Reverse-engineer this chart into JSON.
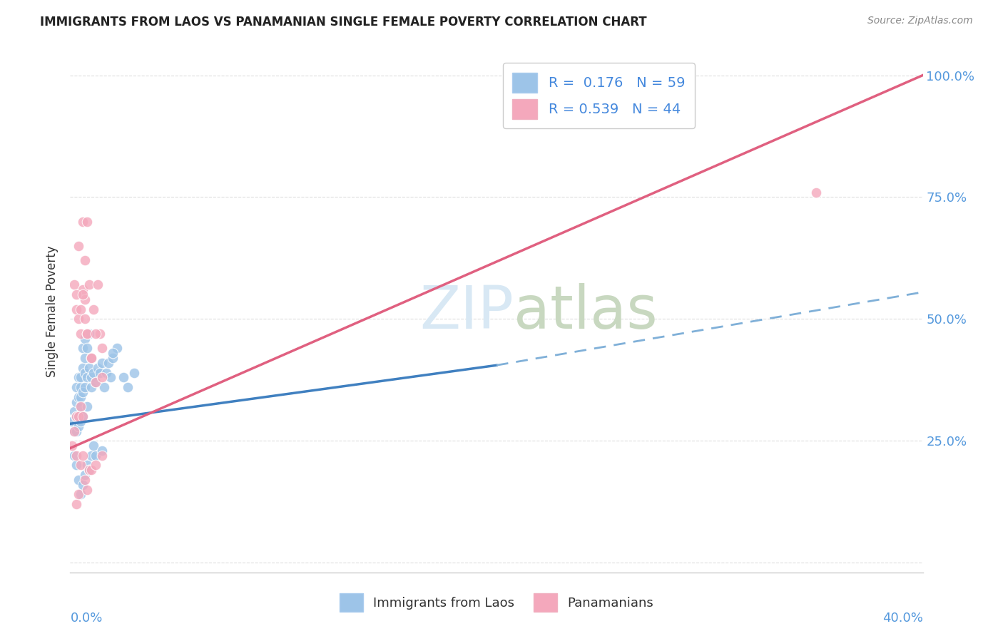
{
  "title": "IMMIGRANTS FROM LAOS VS PANAMANIAN SINGLE FEMALE POVERTY CORRELATION CHART",
  "source": "Source: ZipAtlas.com",
  "ylabel": "Single Female Poverty",
  "legend_laos_R": "0.176",
  "legend_laos_N": "59",
  "legend_pan_R": "0.539",
  "legend_pan_N": "44",
  "laos_color": "#9DC4E8",
  "pan_color": "#F4A8BC",
  "trendline_laos_color": "#4080C0",
  "trendline_pan_color": "#E06080",
  "dashed_color": "#80B0D8",
  "watermark_color": "#D8E8F4",
  "background_color": "#FFFFFF",
  "laos_x": [
    0.001,
    0.002,
    0.002,
    0.003,
    0.003,
    0.003,
    0.003,
    0.004,
    0.004,
    0.004,
    0.004,
    0.005,
    0.005,
    0.005,
    0.005,
    0.005,
    0.006,
    0.006,
    0.006,
    0.006,
    0.007,
    0.007,
    0.007,
    0.007,
    0.008,
    0.008,
    0.008,
    0.009,
    0.009,
    0.01,
    0.01,
    0.01,
    0.011,
    0.012,
    0.013,
    0.014,
    0.015,
    0.016,
    0.017,
    0.018,
    0.019,
    0.02,
    0.022,
    0.025,
    0.027,
    0.03,
    0.002,
    0.003,
    0.004,
    0.005,
    0.006,
    0.007,
    0.008,
    0.009,
    0.01,
    0.011,
    0.012,
    0.015,
    0.02
  ],
  "laos_y": [
    0.29,
    0.27,
    0.31,
    0.3,
    0.33,
    0.27,
    0.36,
    0.34,
    0.3,
    0.38,
    0.28,
    0.32,
    0.36,
    0.29,
    0.34,
    0.38,
    0.35,
    0.4,
    0.3,
    0.44,
    0.36,
    0.42,
    0.39,
    0.46,
    0.38,
    0.44,
    0.32,
    0.4,
    0.47,
    0.42,
    0.36,
    0.38,
    0.39,
    0.37,
    0.4,
    0.39,
    0.41,
    0.36,
    0.39,
    0.41,
    0.38,
    0.42,
    0.44,
    0.38,
    0.36,
    0.39,
    0.22,
    0.2,
    0.17,
    0.14,
    0.16,
    0.18,
    0.2,
    0.19,
    0.22,
    0.24,
    0.22,
    0.23,
    0.43
  ],
  "pan_x": [
    0.001,
    0.002,
    0.002,
    0.003,
    0.003,
    0.003,
    0.004,
    0.004,
    0.005,
    0.005,
    0.006,
    0.006,
    0.006,
    0.007,
    0.007,
    0.008,
    0.008,
    0.009,
    0.01,
    0.011,
    0.012,
    0.013,
    0.014,
    0.015,
    0.003,
    0.004,
    0.005,
    0.006,
    0.007,
    0.008,
    0.009,
    0.01,
    0.012,
    0.015,
    0.003,
    0.004,
    0.005,
    0.006,
    0.007,
    0.008,
    0.01,
    0.012,
    0.015,
    0.35
  ],
  "pan_y": [
    0.24,
    0.27,
    0.57,
    0.3,
    0.52,
    0.22,
    0.5,
    0.3,
    0.32,
    0.47,
    0.56,
    0.3,
    0.7,
    0.54,
    0.62,
    0.47,
    0.7,
    0.57,
    0.42,
    0.52,
    0.37,
    0.57,
    0.47,
    0.44,
    0.12,
    0.14,
    0.2,
    0.22,
    0.17,
    0.15,
    0.19,
    0.19,
    0.2,
    0.22,
    0.55,
    0.65,
    0.52,
    0.55,
    0.5,
    0.47,
    0.42,
    0.47,
    0.38,
    0.76
  ],
  "xlim": [
    0.0,
    0.4
  ],
  "ylim": [
    -0.02,
    1.05
  ],
  "laos_line_x0": 0.0,
  "laos_line_y0": 0.285,
  "laos_line_x1": 0.2,
  "laos_line_y1": 0.405,
  "pan_line_x0": 0.0,
  "pan_line_y0": 0.235,
  "pan_line_x1": 0.4,
  "pan_line_y1": 1.0,
  "dash_line_x0": 0.2,
  "dash_line_y0": 0.405,
  "dash_line_x1": 0.4,
  "dash_line_y1": 0.555
}
